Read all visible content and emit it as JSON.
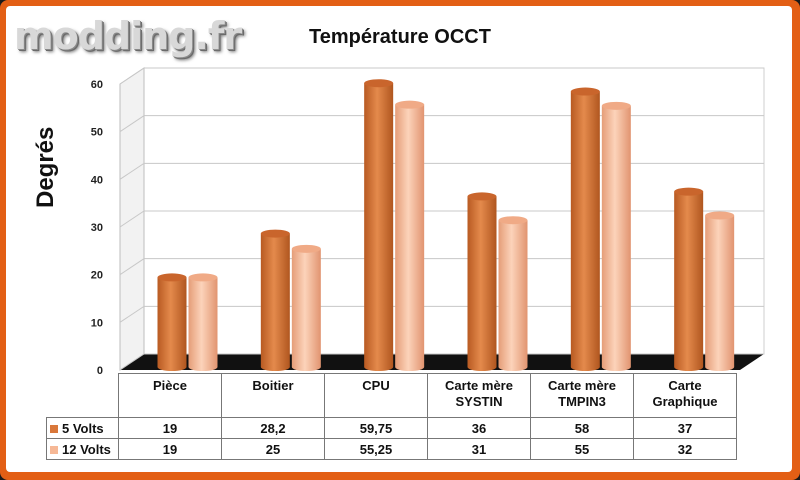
{
  "watermark": "modding.fr",
  "chart_data": {
    "type": "bar",
    "title": "Température OCCT",
    "ylabel": "Degrés",
    "ylim": [
      0,
      60
    ],
    "yticks": [
      0,
      10,
      20,
      30,
      40,
      50,
      60
    ],
    "categories": [
      "Pièce",
      "Boitier",
      "CPU",
      "Carte mère SYSTIN",
      "Carte mère TMPIN3",
      "Carte Graphique"
    ],
    "category_lines": [
      [
        "Pièce"
      ],
      [
        "Boitier"
      ],
      [
        "CPU"
      ],
      [
        "Carte mère",
        "SYSTIN"
      ],
      [
        "Carte mère",
        "TMPIN3"
      ],
      [
        "Carte",
        "Graphique"
      ]
    ],
    "series": [
      {
        "name": "5 Volts",
        "color": "#d9773a",
        "values": [
          19,
          28.2,
          59.75,
          36,
          58,
          37
        ],
        "labels": [
          "19",
          "28,2",
          "59,75",
          "36",
          "58",
          "37"
        ]
      },
      {
        "name": "12 Volts",
        "color": "#f6b896",
        "values": [
          19,
          25,
          55.25,
          31,
          55,
          32
        ],
        "labels": [
          "19",
          "25",
          "55,25",
          "31",
          "55",
          "32"
        ]
      }
    ],
    "grid": true,
    "legend": "data-table"
  }
}
